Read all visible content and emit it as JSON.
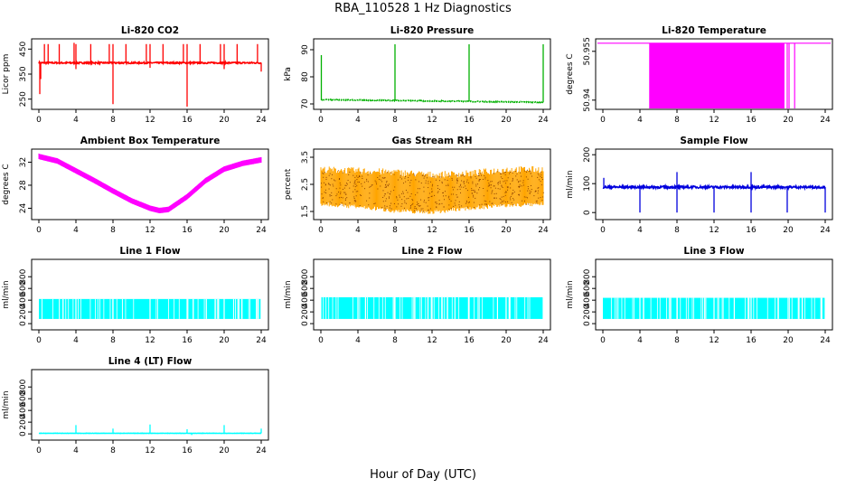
{
  "page": {
    "title": "RBA_110528  1 Hz Diagnostics",
    "x_axis_title": "Hour of Day (UTC)"
  },
  "chart_data": [
    {
      "id": "co2",
      "type": "line",
      "title": "Li-820 CO2",
      "ylabel": "Licor ppm",
      "color": "#ff0000",
      "xlim": [
        0,
        24
      ],
      "ylim": [
        220,
        480
      ],
      "xticks": [
        0,
        4,
        8,
        12,
        16,
        20,
        24
      ],
      "yticks": [
        250,
        350,
        450
      ],
      "pattern": "baseline_spikes",
      "baseline": 395,
      "noise": 3,
      "spikes_up": [
        [
          0.6,
          470
        ],
        [
          1.0,
          470
        ],
        [
          2.2,
          470
        ],
        [
          3.8,
          475
        ],
        [
          4.0,
          470
        ],
        [
          5.6,
          470
        ],
        [
          7.6,
          470
        ],
        [
          8.0,
          470
        ],
        [
          9.4,
          470
        ],
        [
          11.6,
          470
        ],
        [
          12.0,
          470
        ],
        [
          13.4,
          470
        ],
        [
          15.6,
          470
        ],
        [
          16.0,
          470
        ],
        [
          17.4,
          470
        ],
        [
          19.6,
          470
        ],
        [
          20.0,
          470
        ],
        [
          21.4,
          470
        ],
        [
          23.6,
          470
        ]
      ],
      "spikes_down": [
        [
          0.1,
          270
        ],
        [
          0.2,
          330
        ],
        [
          8.0,
          230
        ],
        [
          16.0,
          220
        ],
        [
          4.0,
          370
        ],
        [
          12.0,
          375
        ],
        [
          20.0,
          370
        ],
        [
          24.0,
          360
        ]
      ]
    },
    {
      "id": "pressure",
      "type": "line",
      "title": "Li-820 Pressure",
      "ylabel": "kPa",
      "color": "#00b000",
      "xlim": [
        0,
        24
      ],
      "ylim": [
        69,
        93
      ],
      "xticks": [
        0,
        4,
        8,
        12,
        16,
        20,
        24
      ],
      "yticks": [
        70,
        80,
        90
      ],
      "pattern": "baseline_spikes",
      "baseline_start": 71.6,
      "baseline_end": 70.6,
      "noise": 0.15,
      "spikes_up": [
        [
          0.05,
          88
        ],
        [
          8.0,
          92
        ],
        [
          16.0,
          92
        ],
        [
          24.0,
          92
        ]
      ],
      "spikes_down": []
    },
    {
      "id": "licor_temp",
      "type": "area",
      "title": "Li-820 Temperature",
      "ylabel": "degrees C",
      "color": "#ff00ff",
      "xlim": [
        0,
        24
      ],
      "ylim": [
        50.938,
        50.958
      ],
      "xticks": [
        0,
        4,
        8,
        12,
        16,
        20,
        24
      ],
      "yticks": [
        50.94,
        50.955
      ],
      "pattern": "flag_band",
      "line_value": 50.9575,
      "band": [
        5.0,
        19.6
      ],
      "extra_lines": [
        19.9,
        20.1,
        20.7
      ]
    },
    {
      "id": "ambient",
      "type": "line",
      "title": "Ambient Box Temperature",
      "ylabel": "degrees C",
      "color": "#ff00ff",
      "xlim": [
        0,
        24
      ],
      "ylim": [
        22.5,
        33.8
      ],
      "xticks": [
        0,
        4,
        8,
        12,
        16,
        20,
        24
      ],
      "yticks": [
        24,
        28,
        32
      ],
      "pattern": "band_curve",
      "x": [
        0,
        2,
        4,
        6,
        8,
        10,
        12,
        13,
        14,
        16,
        18,
        20,
        22,
        24
      ],
      "y": [
        33,
        32.2,
        30.5,
        28.8,
        27,
        25.3,
        24,
        23.6,
        23.8,
        26,
        28.8,
        30.8,
        31.8,
        32.4
      ],
      "width": 0.8
    },
    {
      "id": "rh",
      "type": "area",
      "title": "Gas Stream RH",
      "ylabel": "percent",
      "color": "#ffa500",
      "dot_color": "#8b4000",
      "xlim": [
        0,
        24
      ],
      "ylim": [
        1.3,
        3.7
      ],
      "xticks": [
        0,
        4,
        8,
        12,
        16,
        20,
        24
      ],
      "yticks": [
        1.5,
        2.5,
        3.5
      ],
      "pattern": "hatched_band",
      "x": [
        0,
        4,
        8,
        12,
        16,
        20,
        24
      ],
      "upper": [
        3.05,
        3.0,
        2.95,
        2.85,
        2.9,
        3.05,
        3.05
      ],
      "lower": [
        1.8,
        1.7,
        1.55,
        1.5,
        1.65,
        1.75,
        1.8
      ]
    },
    {
      "id": "sample_flow",
      "type": "line",
      "title": "Sample Flow",
      "ylabel": "ml/min",
      "color": "#0000dd",
      "xlim": [
        0,
        24
      ],
      "ylim": [
        -15,
        210
      ],
      "xticks": [
        0,
        4,
        8,
        12,
        16,
        20,
        24
      ],
      "yticks": [
        0,
        100,
        200
      ],
      "pattern": "baseline_spikes",
      "baseline": 88,
      "noise": 4,
      "spikes_up": [
        [
          0.1,
          120
        ],
        [
          8.0,
          140
        ],
        [
          16.0,
          140
        ]
      ],
      "spikes_down": [
        [
          4.0,
          0
        ],
        [
          8.0,
          0
        ],
        [
          12.0,
          0
        ],
        [
          16.0,
          0
        ],
        [
          19.9,
          0
        ],
        [
          24.0,
          0
        ]
      ]
    },
    {
      "id": "line1",
      "type": "area",
      "title": "Line 1 Flow",
      "ylabel": "ml/min",
      "color": "#00ffff",
      "xlim": [
        0,
        24
      ],
      "ylim": [
        -60,
        1050
      ],
      "xticks": [
        0,
        4,
        8,
        12,
        16,
        20,
        24
      ],
      "yticks": [
        0,
        200,
        400,
        600,
        800
      ],
      "pattern": "flow_block",
      "lower": 80,
      "upper": 420,
      "gaps": [
        4,
        8,
        12,
        16,
        20,
        24
      ]
    },
    {
      "id": "line2",
      "type": "area",
      "title": "Line 2 Flow",
      "ylabel": "ml/min",
      "color": "#00ffff",
      "xlim": [
        0,
        24
      ],
      "ylim": [
        -60,
        1050
      ],
      "xticks": [
        0,
        4,
        8,
        12,
        16,
        20,
        24
      ],
      "yticks": [
        0,
        200,
        400,
        600,
        800
      ],
      "pattern": "flow_block",
      "lower": 80,
      "upper": 450,
      "gaps": [
        4,
        8,
        12,
        16,
        20,
        24
      ]
    },
    {
      "id": "line3",
      "type": "area",
      "title": "Line 3 Flow",
      "ylabel": "ml/min",
      "color": "#00ffff",
      "xlim": [
        0,
        24
      ],
      "ylim": [
        -60,
        1050
      ],
      "xticks": [
        0,
        4,
        8,
        12,
        16,
        20,
        24
      ],
      "yticks": [
        0,
        200,
        400,
        600,
        800
      ],
      "pattern": "flow_block",
      "lower": 80,
      "upper": 440,
      "gaps": [
        4,
        8,
        12,
        16,
        20,
        24
      ]
    },
    {
      "id": "line4",
      "type": "line",
      "title": "Line 4 (LT) Flow",
      "ylabel": "ml/min",
      "color": "#00ffff",
      "xlim": [
        0,
        24
      ],
      "ylim": [
        -60,
        1050
      ],
      "xticks": [
        0,
        4,
        8,
        12,
        16,
        20,
        24
      ],
      "yticks": [
        0,
        200,
        400,
        600,
        800
      ],
      "pattern": "baseline_spikes",
      "baseline": 10,
      "noise": 2,
      "spikes_up": [
        [
          4.0,
          150
        ],
        [
          8.0,
          90
        ],
        [
          12.0,
          160
        ],
        [
          16.0,
          80
        ],
        [
          20.0,
          150
        ],
        [
          24.0,
          90
        ]
      ],
      "spikes_down": [
        [
          16.5,
          -20
        ]
      ]
    }
  ]
}
